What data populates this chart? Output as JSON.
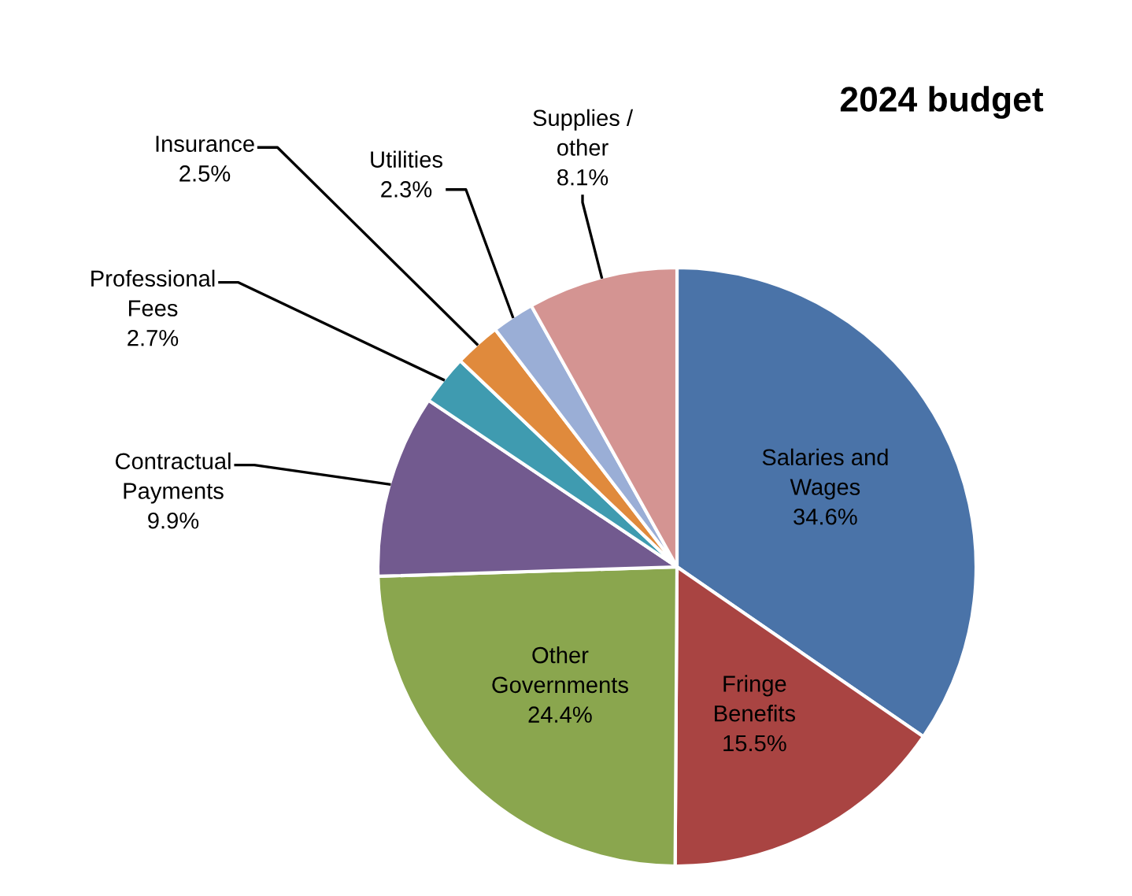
{
  "chart_data": {
    "type": "pie",
    "title": "2024 budget",
    "categories": [
      "Salaries and\nWages",
      "Fringe\nBenefits",
      "Other\nGovernments",
      "Contractual\nPayments",
      "Professional\nFees",
      "Insurance",
      "Utilities",
      "Supplies /\nother"
    ],
    "values": [
      34.6,
      15.5,
      24.4,
      9.9,
      2.7,
      2.5,
      2.3,
      8.1
    ],
    "value_labels": [
      "34.6%",
      "15.5%",
      "24.4%",
      "9.9%",
      "2.7%",
      "2.5%",
      "2.3%",
      "8.1%"
    ],
    "colors": [
      "#4a73a8",
      "#a94442",
      "#8aa64e",
      "#725a8f",
      "#3f9bb0",
      "#e08a3c",
      "#9aaed6",
      "#d49492"
    ],
    "legend": false
  }
}
